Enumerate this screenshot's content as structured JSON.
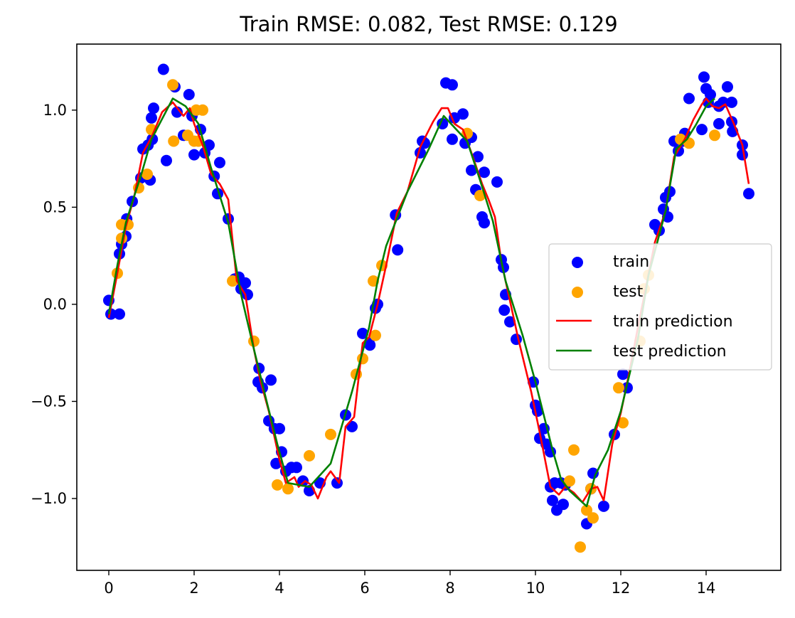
{
  "chart_data": {
    "type": "scatter",
    "title": "Train RMSE: 0.082, Test RMSE: 0.129",
    "xlabel": "",
    "ylabel": "",
    "xlim": [
      -0.75,
      15.75
    ],
    "ylim": [
      -1.37,
      1.34
    ],
    "x_ticks": [
      0,
      2,
      4,
      6,
      8,
      10,
      12,
      14
    ],
    "x_tick_labels": [
      "0",
      "2",
      "4",
      "6",
      "8",
      "10",
      "12",
      "14"
    ],
    "y_ticks": [
      -1.0,
      -0.5,
      0.0,
      0.5,
      1.0
    ],
    "y_tick_labels": [
      "−1.0",
      "−0.5",
      "0.0",
      "0.5",
      "1.0"
    ],
    "grid": false,
    "legend_position": "center-right",
    "colors": {
      "train": "#0000ff",
      "test": "#ffa500",
      "train_prediction": "#ff0000",
      "test_prediction": "#008000"
    },
    "series": [
      {
        "name": "train",
        "kind": "scatter",
        "points": [
          [
            0.0,
            0.02
          ],
          [
            0.05,
            -0.05
          ],
          [
            0.25,
            -0.05
          ],
          [
            0.25,
            0.26
          ],
          [
            0.3,
            0.31
          ],
          [
            0.4,
            0.35
          ],
          [
            0.42,
            0.44
          ],
          [
            0.55,
            0.53
          ],
          [
            0.75,
            0.65
          ],
          [
            0.8,
            0.8
          ],
          [
            0.92,
            0.82
          ],
          [
            0.97,
            0.64
          ],
          [
            1.0,
            0.96
          ],
          [
            1.05,
            1.01
          ],
          [
            1.02,
            0.85
          ],
          [
            1.28,
            1.21
          ],
          [
            1.35,
            0.74
          ],
          [
            1.55,
            1.12
          ],
          [
            1.6,
            0.99
          ],
          [
            1.75,
            0.87
          ],
          [
            1.88,
            1.08
          ],
          [
            1.95,
            0.97
          ],
          [
            2.0,
            0.77
          ],
          [
            2.15,
            0.9
          ],
          [
            2.25,
            0.78
          ],
          [
            2.35,
            0.82
          ],
          [
            2.47,
            0.66
          ],
          [
            2.55,
            0.57
          ],
          [
            2.6,
            0.73
          ],
          [
            2.8,
            0.44
          ],
          [
            2.95,
            0.13
          ],
          [
            3.05,
            0.14
          ],
          [
            3.1,
            0.08
          ],
          [
            3.2,
            0.11
          ],
          [
            3.25,
            0.05
          ],
          [
            3.5,
            -0.4
          ],
          [
            3.52,
            -0.33
          ],
          [
            3.6,
            -0.43
          ],
          [
            3.75,
            -0.6
          ],
          [
            3.8,
            -0.39
          ],
          [
            3.88,
            -0.64
          ],
          [
            3.92,
            -0.82
          ],
          [
            4.0,
            -0.64
          ],
          [
            4.05,
            -0.76
          ],
          [
            4.15,
            -0.86
          ],
          [
            4.28,
            -0.84
          ],
          [
            4.4,
            -0.84
          ],
          [
            4.55,
            -0.91
          ],
          [
            4.7,
            -0.96
          ],
          [
            4.95,
            -0.92
          ],
          [
            5.35,
            -0.92
          ],
          [
            5.55,
            -0.57
          ],
          [
            5.7,
            -0.63
          ],
          [
            5.95,
            -0.15
          ],
          [
            6.1,
            -0.2
          ],
          [
            6.12,
            -0.21
          ],
          [
            6.25,
            -0.02
          ],
          [
            6.3,
            0.0
          ],
          [
            6.72,
            0.46
          ],
          [
            6.77,
            0.28
          ],
          [
            7.3,
            0.78
          ],
          [
            7.35,
            0.84
          ],
          [
            7.4,
            0.83
          ],
          [
            7.82,
            0.93
          ],
          [
            7.9,
            1.14
          ],
          [
            8.05,
            1.13
          ],
          [
            8.05,
            0.85
          ],
          [
            8.1,
            0.96
          ],
          [
            8.3,
            0.98
          ],
          [
            8.35,
            0.83
          ],
          [
            8.5,
            0.86
          ],
          [
            8.5,
            0.69
          ],
          [
            8.6,
            0.59
          ],
          [
            8.65,
            0.76
          ],
          [
            8.75,
            0.45
          ],
          [
            8.8,
            0.42
          ],
          [
            8.8,
            0.68
          ],
          [
            9.1,
            0.63
          ],
          [
            9.2,
            0.23
          ],
          [
            9.25,
            0.19
          ],
          [
            9.27,
            -0.03
          ],
          [
            9.3,
            0.05
          ],
          [
            9.4,
            -0.09
          ],
          [
            9.55,
            -0.18
          ],
          [
            9.95,
            -0.4
          ],
          [
            10.0,
            -0.52
          ],
          [
            10.05,
            -0.55
          ],
          [
            10.1,
            -0.69
          ],
          [
            10.2,
            -0.64
          ],
          [
            10.25,
            -0.72
          ],
          [
            10.35,
            -0.76
          ],
          [
            10.35,
            -0.94
          ],
          [
            10.4,
            -1.01
          ],
          [
            10.45,
            -0.92
          ],
          [
            10.5,
            -1.06
          ],
          [
            10.6,
            -0.92
          ],
          [
            10.65,
            -1.03
          ],
          [
            10.7,
            -0.93
          ],
          [
            11.2,
            -1.13
          ],
          [
            11.3,
            -0.95
          ],
          [
            11.35,
            -0.87
          ],
          [
            11.6,
            -1.04
          ],
          [
            11.85,
            -0.67
          ],
          [
            12.05,
            -0.36
          ],
          [
            12.15,
            -0.43
          ],
          [
            12.8,
            0.41
          ],
          [
            12.9,
            0.38
          ],
          [
            13.0,
            0.49
          ],
          [
            13.05,
            0.55
          ],
          [
            13.15,
            0.58
          ],
          [
            13.1,
            0.45
          ],
          [
            13.25,
            0.84
          ],
          [
            13.35,
            0.79
          ],
          [
            13.45,
            0.84
          ],
          [
            13.5,
            0.88
          ],
          [
            13.6,
            1.06
          ],
          [
            13.9,
            0.9
          ],
          [
            13.95,
            1.17
          ],
          [
            14.0,
            1.11
          ],
          [
            14.05,
            1.04
          ],
          [
            14.1,
            1.08
          ],
          [
            14.3,
            1.02
          ],
          [
            14.3,
            0.93
          ],
          [
            14.4,
            1.04
          ],
          [
            14.5,
            1.12
          ],
          [
            14.6,
            1.04
          ],
          [
            14.62,
            0.89
          ],
          [
            14.6,
            0.94
          ],
          [
            14.85,
            0.77
          ],
          [
            14.85,
            0.82
          ],
          [
            15.0,
            0.57
          ]
        ]
      },
      {
        "name": "test",
        "kind": "scatter",
        "points": [
          [
            0.2,
            0.16
          ],
          [
            0.3,
            0.34
          ],
          [
            0.3,
            0.41
          ],
          [
            0.45,
            0.41
          ],
          [
            0.7,
            0.6
          ],
          [
            0.9,
            0.67
          ],
          [
            1.0,
            0.9
          ],
          [
            1.5,
            1.13
          ],
          [
            1.52,
            0.84
          ],
          [
            1.85,
            0.87
          ],
          [
            2.0,
            0.84
          ],
          [
            2.05,
            1.0
          ],
          [
            2.1,
            0.84
          ],
          [
            2.2,
            1.0
          ],
          [
            2.9,
            0.12
          ],
          [
            3.4,
            -0.19
          ],
          [
            3.95,
            -0.93
          ],
          [
            4.2,
            -0.95
          ],
          [
            4.7,
            -0.78
          ],
          [
            5.2,
            -0.67
          ],
          [
            5.8,
            -0.36
          ],
          [
            5.95,
            -0.28
          ],
          [
            6.2,
            0.12
          ],
          [
            6.25,
            -0.16
          ],
          [
            6.4,
            0.2
          ],
          [
            8.4,
            0.88
          ],
          [
            8.7,
            0.56
          ],
          [
            10.8,
            -0.91
          ],
          [
            10.9,
            -0.75
          ],
          [
            11.05,
            -1.25
          ],
          [
            11.2,
            -1.06
          ],
          [
            11.3,
            -0.95
          ],
          [
            11.35,
            -1.1
          ],
          [
            11.95,
            -0.43
          ],
          [
            12.05,
            -0.61
          ],
          [
            12.45,
            -0.19
          ],
          [
            12.55,
            0.08
          ],
          [
            12.65,
            0.15
          ],
          [
            13.4,
            0.85
          ],
          [
            13.6,
            0.83
          ],
          [
            14.2,
            0.87
          ]
        ]
      },
      {
        "name": "train prediction",
        "kind": "line",
        "points": [
          [
            0.0,
            -0.07
          ],
          [
            0.2,
            0.16
          ],
          [
            0.4,
            0.4
          ],
          [
            0.6,
            0.56
          ],
          [
            0.8,
            0.78
          ],
          [
            1.0,
            0.86
          ],
          [
            1.25,
            0.99
          ],
          [
            1.5,
            1.04
          ],
          [
            1.75,
            0.97
          ],
          [
            1.9,
            1.01
          ],
          [
            2.0,
            0.93
          ],
          [
            2.2,
            0.82
          ],
          [
            2.4,
            0.67
          ],
          [
            2.6,
            0.62
          ],
          [
            2.8,
            0.54
          ],
          [
            3.0,
            0.12
          ],
          [
            3.2,
            0.05
          ],
          [
            3.4,
            -0.23
          ],
          [
            3.55,
            -0.39
          ],
          [
            3.75,
            -0.55
          ],
          [
            3.9,
            -0.7
          ],
          [
            4.0,
            -0.8
          ],
          [
            4.15,
            -0.92
          ],
          [
            4.35,
            -0.89
          ],
          [
            4.45,
            -0.94
          ],
          [
            4.6,
            -0.91
          ],
          [
            4.75,
            -0.93
          ],
          [
            4.9,
            -1.0
          ],
          [
            5.1,
            -0.89
          ],
          [
            5.2,
            -0.86
          ],
          [
            5.4,
            -0.92
          ],
          [
            5.55,
            -0.63
          ],
          [
            5.75,
            -0.58
          ],
          [
            5.95,
            -0.2
          ],
          [
            6.1,
            -0.17
          ],
          [
            6.3,
            0.0
          ],
          [
            6.5,
            0.2
          ],
          [
            6.75,
            0.47
          ],
          [
            7.0,
            0.58
          ],
          [
            7.3,
            0.81
          ],
          [
            7.6,
            0.94
          ],
          [
            7.8,
            1.01
          ],
          [
            7.95,
            1.01
          ],
          [
            8.1,
            0.93
          ],
          [
            8.3,
            0.9
          ],
          [
            8.5,
            0.78
          ],
          [
            8.75,
            0.62
          ],
          [
            8.9,
            0.54
          ],
          [
            9.05,
            0.45
          ],
          [
            9.2,
            0.22
          ],
          [
            9.4,
            0.02
          ],
          [
            9.6,
            -0.18
          ],
          [
            9.9,
            -0.45
          ],
          [
            10.1,
            -0.66
          ],
          [
            10.35,
            -0.94
          ],
          [
            10.55,
            -0.98
          ],
          [
            10.7,
            -0.94
          ],
          [
            10.9,
            -0.97
          ],
          [
            11.1,
            -1.02
          ],
          [
            11.3,
            -0.95
          ],
          [
            11.45,
            -0.94
          ],
          [
            11.6,
            -1.01
          ],
          [
            11.8,
            -0.72
          ],
          [
            12.0,
            -0.56
          ],
          [
            12.2,
            -0.35
          ],
          [
            12.4,
            -0.12
          ],
          [
            12.6,
            0.1
          ],
          [
            12.8,
            0.32
          ],
          [
            13.05,
            0.48
          ],
          [
            13.25,
            0.76
          ],
          [
            13.5,
            0.85
          ],
          [
            13.7,
            0.95
          ],
          [
            13.9,
            1.03
          ],
          [
            14.0,
            1.06
          ],
          [
            14.15,
            1.02
          ],
          [
            14.3,
            1.01
          ],
          [
            14.45,
            1.03
          ],
          [
            14.65,
            0.93
          ],
          [
            14.85,
            0.82
          ],
          [
            15.0,
            0.62
          ]
        ]
      },
      {
        "name": "test prediction",
        "kind": "line",
        "points": [
          [
            0.0,
            -0.05
          ],
          [
            0.2,
            0.2
          ],
          [
            0.4,
            0.42
          ],
          [
            0.6,
            0.56
          ],
          [
            0.75,
            0.66
          ],
          [
            1.0,
            0.85
          ],
          [
            1.5,
            1.06
          ],
          [
            1.8,
            1.02
          ],
          [
            2.1,
            0.93
          ],
          [
            2.4,
            0.7
          ],
          [
            2.8,
            0.42
          ],
          [
            3.1,
            0.05
          ],
          [
            3.4,
            -0.23
          ],
          [
            3.7,
            -0.5
          ],
          [
            3.95,
            -0.72
          ],
          [
            4.2,
            -0.92
          ],
          [
            4.7,
            -0.94
          ],
          [
            5.2,
            -0.82
          ],
          [
            5.7,
            -0.45
          ],
          [
            6.1,
            -0.12
          ],
          [
            6.3,
            0.12
          ],
          [
            6.5,
            0.3
          ],
          [
            7.0,
            0.58
          ],
          [
            7.5,
            0.8
          ],
          [
            7.85,
            0.97
          ],
          [
            8.4,
            0.84
          ],
          [
            8.7,
            0.64
          ],
          [
            9.0,
            0.43
          ],
          [
            9.3,
            0.12
          ],
          [
            9.7,
            -0.16
          ],
          [
            10.0,
            -0.4
          ],
          [
            10.4,
            -0.75
          ],
          [
            10.6,
            -0.9
          ],
          [
            10.8,
            -0.96
          ],
          [
            11.2,
            -1.04
          ],
          [
            11.4,
            -0.88
          ],
          [
            11.7,
            -0.75
          ],
          [
            12.0,
            -0.55
          ],
          [
            12.4,
            -0.18
          ],
          [
            12.65,
            0.15
          ],
          [
            13.05,
            0.48
          ],
          [
            13.3,
            0.8
          ],
          [
            13.55,
            0.85
          ],
          [
            13.75,
            0.92
          ],
          [
            14.0,
            1.02
          ],
          [
            14.2,
            1.06
          ]
        ]
      }
    ]
  }
}
